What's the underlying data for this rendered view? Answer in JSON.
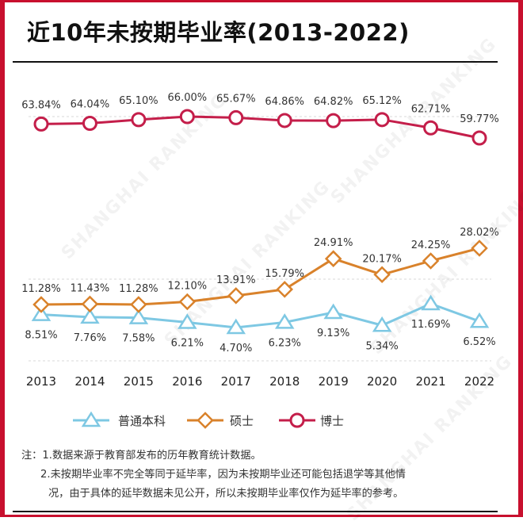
{
  "title": "近10年未按期毕业率(2013-2022)",
  "watermark": "SHANGHAI RANKING",
  "chart_data": {
    "type": "line",
    "title": "近10年未按期毕业率(2013-2022)",
    "xlabel": "",
    "ylabel": "",
    "x": [
      "2013",
      "2014",
      "2015",
      "2016",
      "2017",
      "2018",
      "2019",
      "2020",
      "2021",
      "2022"
    ],
    "series": [
      {
        "name": "普通本科",
        "marker": "triangle",
        "color": "#7ec8e3",
        "values": [
          8.51,
          7.76,
          7.58,
          6.21,
          4.7,
          6.23,
          9.13,
          5.34,
          11.69,
          6.52
        ],
        "labels": [
          "8.51%",
          "7.76%",
          "7.58%",
          "6.21%",
          "4.70%",
          "6.23%",
          "9.13%",
          "5.34%",
          "11.69%",
          "6.52%"
        ],
        "label_position": "below"
      },
      {
        "name": "硕士",
        "marker": "diamond",
        "color": "#d9822b",
        "values": [
          11.28,
          11.43,
          11.28,
          12.1,
          13.91,
          15.79,
          24.91,
          20.17,
          24.25,
          28.02
        ],
        "labels": [
          "11.28%",
          "11.43%",
          "11.28%",
          "12.10%",
          "13.91%",
          "15.79%",
          "24.91%",
          "20.17%",
          "24.25%",
          "28.02%"
        ],
        "label_position": "above"
      },
      {
        "name": "博士",
        "marker": "circle",
        "color": "#c41e4a",
        "values": [
          63.84,
          64.04,
          65.1,
          66.0,
          65.67,
          64.86,
          64.82,
          65.12,
          62.71,
          59.77
        ],
        "labels": [
          "63.84%",
          "64.04%",
          "65.10%",
          "66.00%",
          "65.67%",
          "64.86%",
          "64.82%",
          "65.12%",
          "62.71%",
          "59.77%"
        ],
        "label_position": "above"
      }
    ],
    "axis_note": "broken y-axis; no y tick labels shown",
    "grid": "dashed horizontal guides",
    "legend": "bottom-center"
  },
  "notes": {
    "prefix": "注：",
    "line1": "1.数据来源于教育部发布的历年教育统计数据。",
    "line2": "2.未按期毕业率不完全等同于延毕率，因为未按期毕业还可能包括退学等其他情",
    "line3": "况，由于具体的延毕数据未见公开，所以未按期毕业率仅作为延毕率的参考。"
  }
}
